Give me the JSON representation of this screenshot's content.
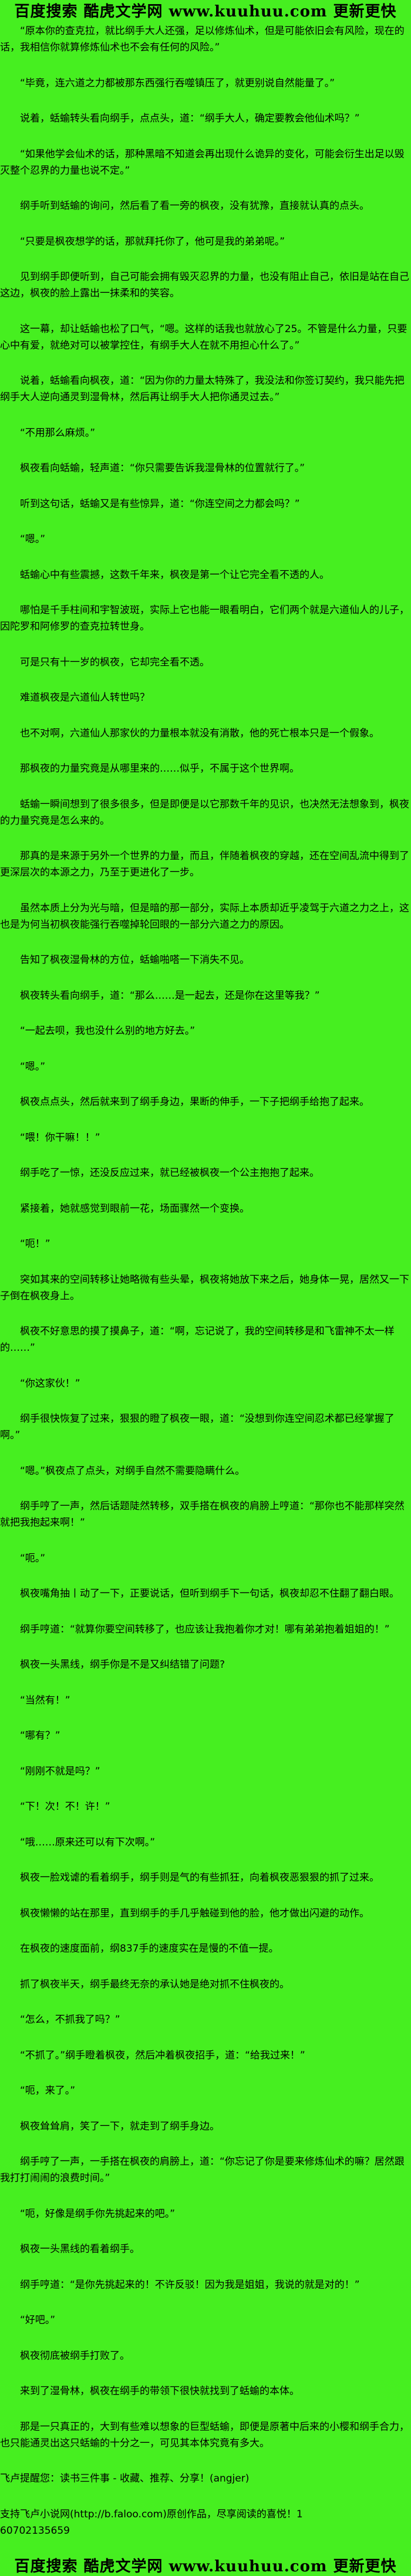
{
  "page": {
    "background_color": "#46EF20",
    "text_color": "#000000"
  },
  "banners": {
    "header": "百度搜索 酷虎文学网 www.kuuhuu.com 更新更快",
    "footer": "百度搜索 酷虎文学网 www.kuuhuu.com 更新更快"
  },
  "content": {
    "paragraphs": [
      {
        "text": "“原本你的查克拉，就比纲手大人还强，足以修炼仙术，但是可能依旧会有风险，现在的话，我相信你就算修炼仙术也不会有任何的风险。”",
        "indent": true
      },
      {
        "text": "“毕竟，连六道之力都被那东西强行吞噬镇压了，就更别说自然能量了。”",
        "indent": true
      },
      {
        "text": "说着，蛞蝓转头看向纲手，点点头，道：“纲手大人，确定要教会他仙术吗？”",
        "indent": true
      },
      {
        "text": "“如果他学会仙术的话，那种黑暗不知道会再出现什么诡异的变化，可能会衍生出足以毁灭整个忍界的力量也说不定。”",
        "indent": true
      },
      {
        "text": "纲手听到蛞蝓的询问，然后看了看一旁的枫夜，没有犹豫，直接就认真的点头。",
        "indent": true
      },
      {
        "text": "“只要是枫夜想学的话，那就拜托你了，他可是我的弟弟呢。”",
        "indent": true
      },
      {
        "text": "见到纲手即便听到，自己可能会拥有毁灭忍界的力量，也没有阻止自己，依旧是站在自己这边，枫夜的脸上露出一抹柔和的笑容。",
        "indent": true
      },
      {
        "text": "这一幕，却让蛞蝓也松了口气，“嗯。这样的话我也就放心了25。不管是什么力量，只要心中有爱，就绝对可以被掌控住，有纲手大人在就不用担心什么了。”",
        "indent": true
      },
      {
        "text": "说着，蛞蝓看向枫夜，道：“因为你的力量太特殊了，我没法和你签订契约，我只能先把纲手大人逆向通灵到湿骨林，然后再让纲手大人把你通灵过去。”",
        "indent": true
      },
      {
        "text": "“不用那么麻烦。”",
        "indent": true
      },
      {
        "text": "枫夜看向蛞蝓，轻声道：“你只需要告诉我湿骨林的位置就行了。”",
        "indent": true
      },
      {
        "text": "听到这句话，蛞蝓又是有些惊异，道：“你连空间之力都会吗？”",
        "indent": true
      },
      {
        "text": "“嗯。”",
        "indent": true
      },
      {
        "text": "蛞蝓心中有些震撼，这数千年来，枫夜是第一个让它完全看不透的人。",
        "indent": true
      },
      {
        "text": "哪怕是千手柱间和宇智波斑，实际上它也能一眼看明白，它们两个就是六道仙人的儿子，因陀罗和阿修罗的查克拉转世身。",
        "indent": true
      },
      {
        "text": "可是只有十一岁的枫夜，它却完全看不透。",
        "indent": true
      },
      {
        "text": "难道枫夜是六道仙人转世吗？",
        "indent": true
      },
      {
        "text": "也不对啊，六道仙人那家伙的力量根本就没有消散，他的死亡根本只是一个假象。",
        "indent": true
      },
      {
        "text": "那枫夜的力量究竟是从哪里来的……似乎，不属于这个世界啊。",
        "indent": true
      },
      {
        "text": "蛞蝓一瞬间想到了很多很多，但是即便是以它那数千年的见识，也决然无法想象到，枫夜的力量究竟是怎么来的。",
        "indent": true
      },
      {
        "text": "那真的是来源于另外一个世界的力量，而且，伴随着枫夜的穿越，还在空间乱流中得到了更深层次的本源之力，乃至于更进化了一步。",
        "indent": true
      },
      {
        "text": "虽然本质上分为光与暗，但是暗的那一部分，实际上本质却近乎凌驾于六道之力之上，这也是为何当初枫夜能强行吞噬掉轮回眼的一部分六道之力的原因。",
        "indent": true
      },
      {
        "text": "告知了枫夜湿骨林的方位，蛞蝓啪嗒一下消失不见。",
        "indent": true
      },
      {
        "text": "枫夜转头看向纲手，道：“那么……是一起去，还是你在这里等我？”",
        "indent": true
      },
      {
        "text": "“一起去呗，我也没什么别的地方好去。”",
        "indent": true
      },
      {
        "text": "“嗯。”",
        "indent": true
      },
      {
        "text": "枫夜点点头，然后就来到了纲手身边，果断的伸手，一下子把纲手给抱了起来。",
        "indent": true
      },
      {
        "text": "“喂！你干嘛！！”",
        "indent": true
      },
      {
        "text": "纲手吃了一惊，还没反应过来，就已经被枫夜一个公主抱抱了起来。",
        "indent": true
      },
      {
        "text": "紧接着，她就感觉到眼前一花，场面骤然一个变换。",
        "indent": true
      },
      {
        "text": "“呃！”",
        "indent": true
      },
      {
        "text": "突如其来的空间转移让她略微有些头晕，枫夜将她放下来之后，她身体一晃，居然又一下子倒在枫夜身上。",
        "indent": true
      },
      {
        "text": "枫夜不好意思的摸了摸鼻子，道：“啊，忘记说了，我的空间转移是和飞雷神不太一样的……”",
        "indent": true
      },
      {
        "text": "“你这家伙！”",
        "indent": true
      },
      {
        "text": "纲手很快恢复了过来，狠狠的瞪了枫夜一眼，道：“没想到你连空间忍术都已经掌握了啊。”",
        "indent": true
      },
      {
        "text": "“嗯。”枫夜点了点头，对纲手自然不需要隐瞒什么。",
        "indent": true
      },
      {
        "text": "纲手哼了一声，然后话题陡然转移，双手搭在枫夜的肩膀上哼道：“那你也不能那样突然就把我抱起来啊！”",
        "indent": true
      },
      {
        "text": "“呃。”",
        "indent": true
      },
      {
        "text": "枫夜嘴角抽丨动了一下，正要说话，但听到纲手下一句话，枫夜却忍不住翻了翻白眼。",
        "indent": true
      },
      {
        "text": "纲手哼道：“就算你要空间转移了，也应该让我抱着你才对！哪有弟弟抱着姐姐的！”",
        "indent": true
      },
      {
        "text": "枫夜一头黑线，纲手你是不是又纠结错了问题?",
        "indent": true
      },
      {
        "text": "“当然有！”",
        "indent": true
      },
      {
        "text": "“哪有？”",
        "indent": true
      },
      {
        "text": "“刚刚不就是吗？”",
        "indent": true
      },
      {
        "text": "“下！次！不！许！”",
        "indent": true
      },
      {
        "text": "“哦……原来还可以有下次啊。”",
        "indent": true
      },
      {
        "text": "枫夜一脸戏谑的看着纲手，纲手则是气的有些抓狂，向着枫夜恶狠狠的抓了过来。",
        "indent": true
      },
      {
        "text": "枫夜懒懒的站在那里，直到纲手的手几乎触碰到他的脸，他才做出闪避的动作。",
        "indent": true
      },
      {
        "text": "在枫夜的速度面前，纲837手的速度实在是慢的不值一提。",
        "indent": true
      },
      {
        "text": "抓了枫夜半天，纲手最终无奈的承认她是绝对抓不住枫夜的。",
        "indent": true
      },
      {
        "text": "“怎么，不抓我了吗？”",
        "indent": true
      },
      {
        "text": "“不抓了。”纲手瞪着枫夜，然后冲着枫夜招手，道：“给我过来！”",
        "indent": true
      },
      {
        "text": "“呃，来了。”",
        "indent": true
      },
      {
        "text": "枫夜耸耸肩，笑了一下，就走到了纲手身边。",
        "indent": true
      },
      {
        "text": "纲手哼了一声，一手搭在枫夜的肩膀上，道：“你忘记了你是要来修炼仙术的嘛？居然跟我打打闹闹的浪费时间。”",
        "indent": true
      },
      {
        "text": "“呃，好像是纲手你先挑起来的吧。”",
        "indent": true
      },
      {
        "text": "枫夜一头黑线的看着纲手。",
        "indent": true
      },
      {
        "text": "纲手哼道：“是你先挑起来的！不许反驳！因为我是姐姐，我说的就是对的！”",
        "indent": true
      },
      {
        "text": "“好吧。”",
        "indent": true
      },
      {
        "text": "枫夜彻底被纲手打败了。",
        "indent": true
      },
      {
        "text": "来到了湿骨林，枫夜在纲手的带领下很快就找到了蛞蝓的本体。",
        "indent": true
      },
      {
        "text": "那是一只真正的，大到有些难以想象的巨型蛞蝓，即便是原著中后来的小樱和纲手合力，也只能通灵出这只蛞蝓的十分之一，可见其本体究竟有多大。",
        "indent": true
      },
      {
        "text": "飞卢提醒您：读书三件事 - 收藏、推荐、分享！(angjer)",
        "indent": false
      },
      {
        "text": "支持飞卢小说网(http://b.faloo.com)原创作品，尽享阅读的喜悦！1\n60702135659",
        "indent": false,
        "pre": true
      }
    ]
  }
}
